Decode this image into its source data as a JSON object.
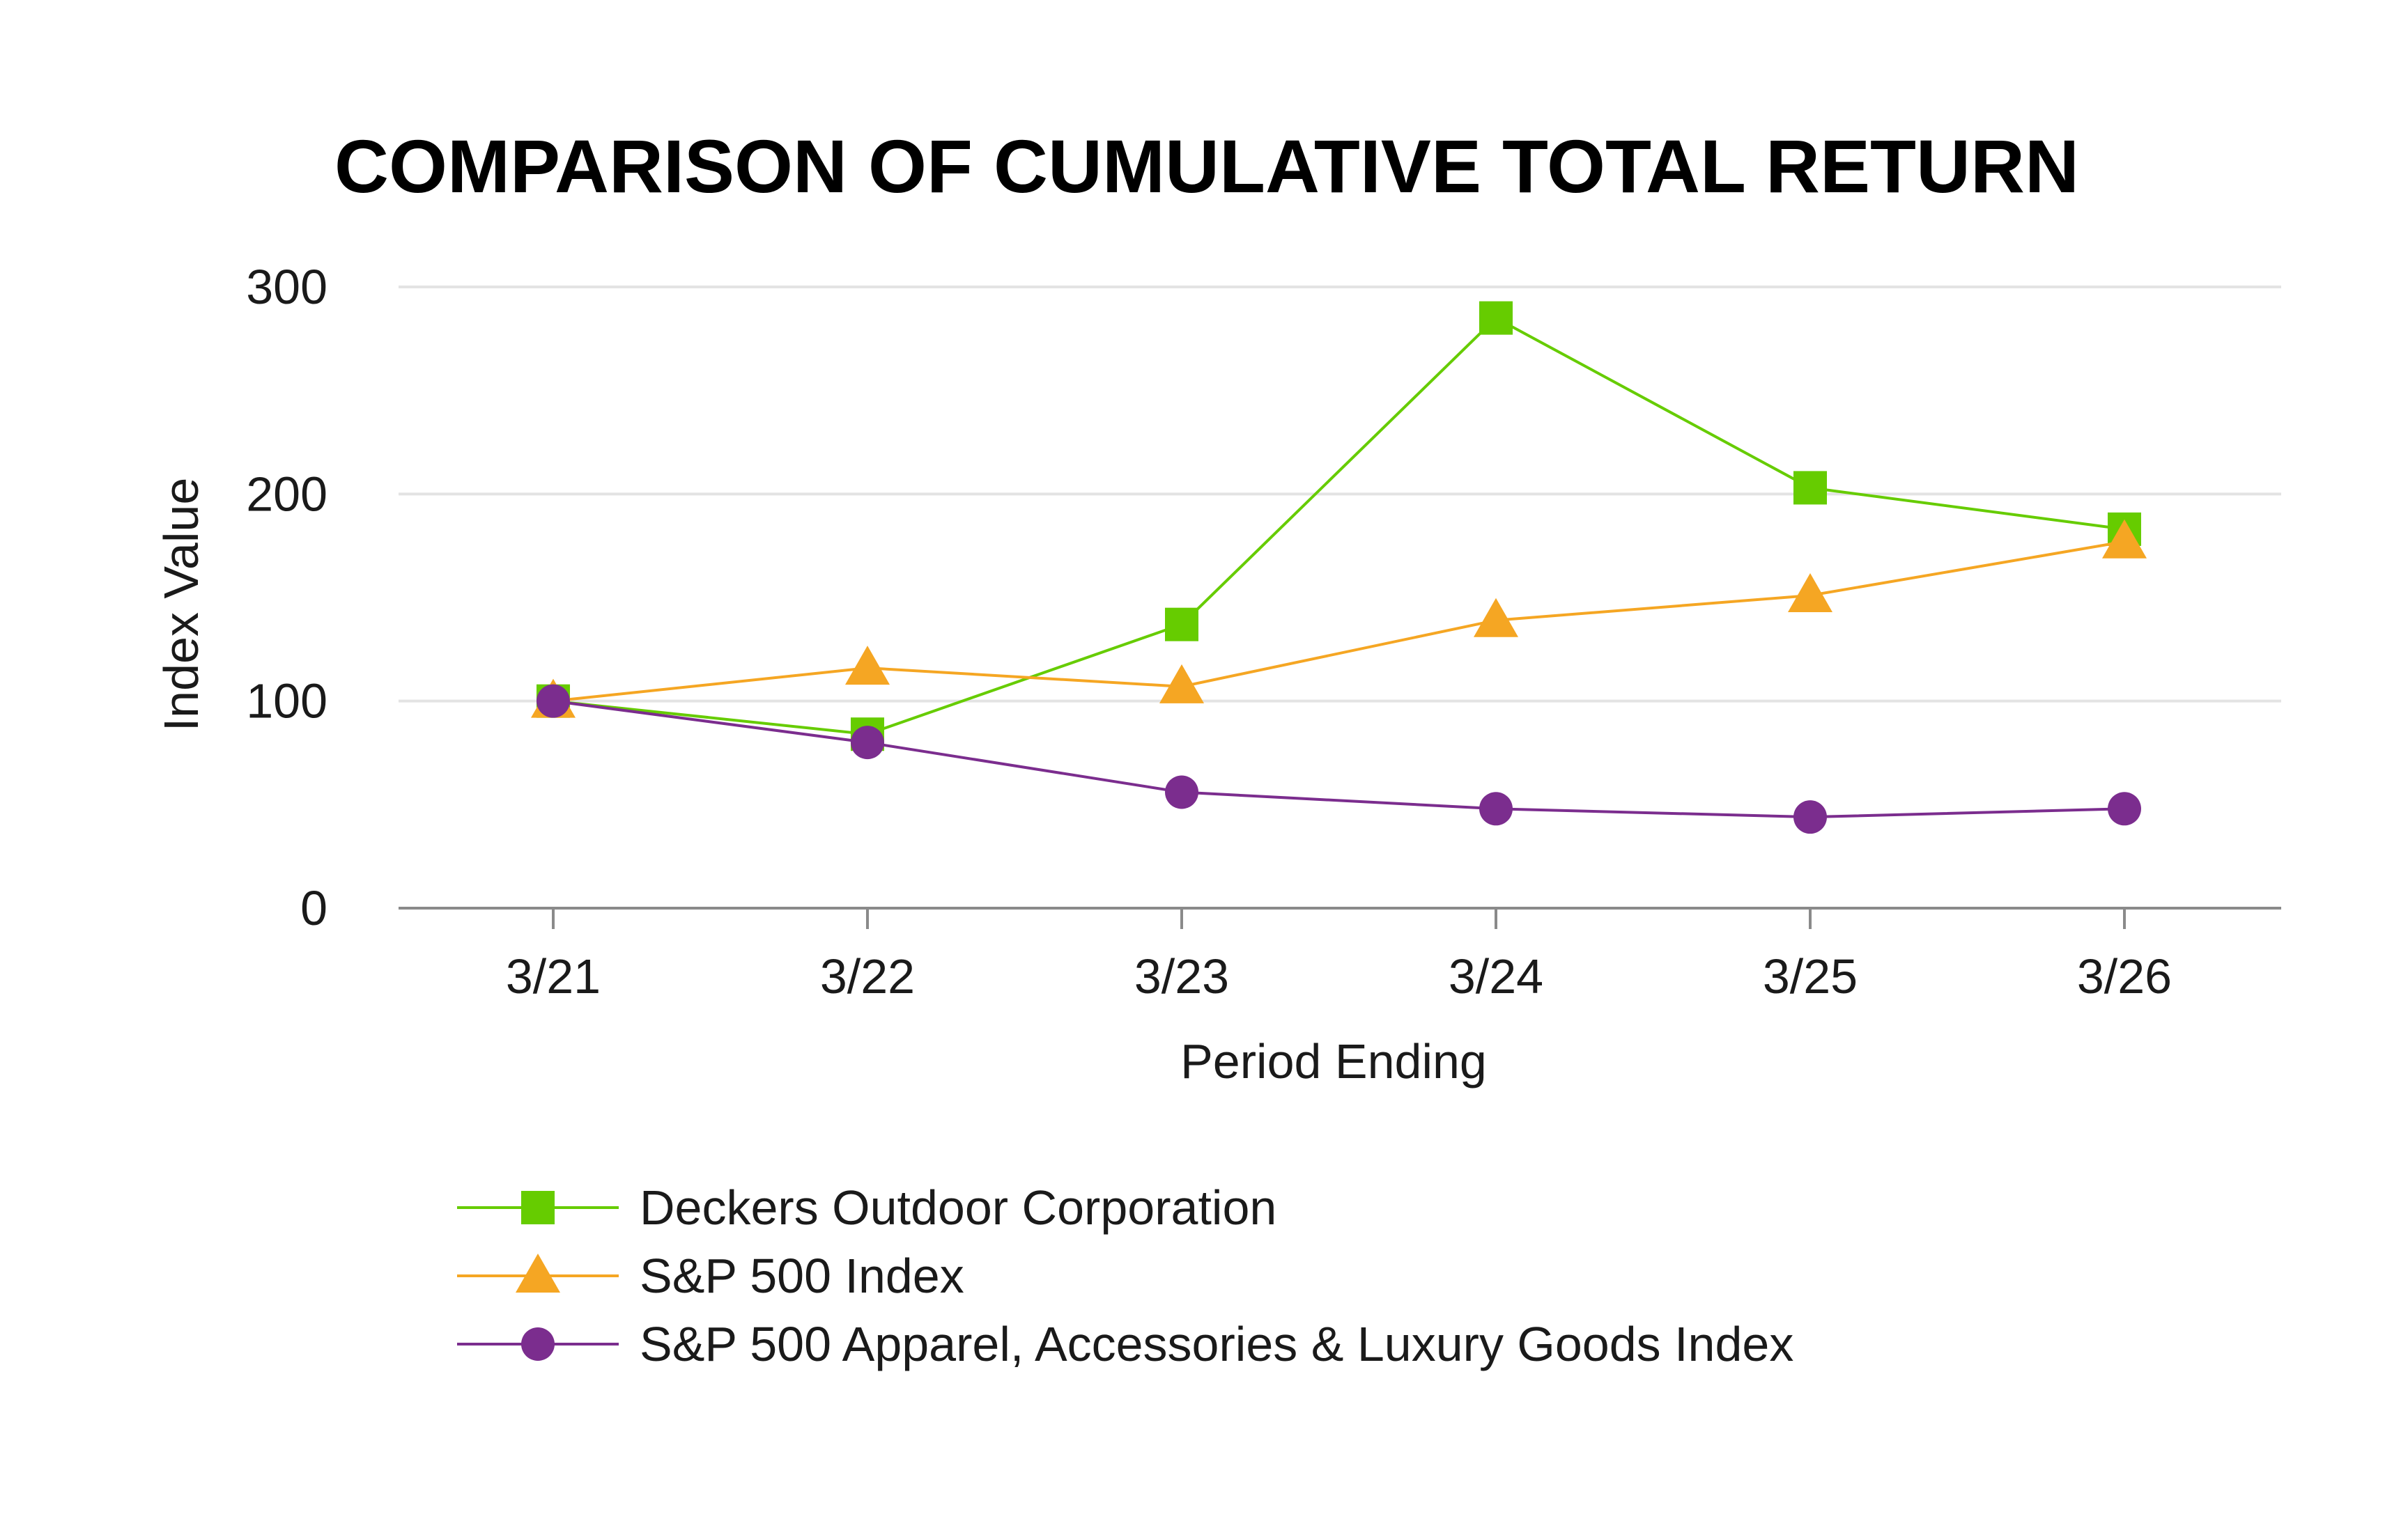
{
  "chart_data": {
    "type": "line",
    "title": "COMPARISON OF CUMULATIVE TOTAL RETURN",
    "xlabel": "Period Ending",
    "ylabel": "Index Value",
    "categories": [
      "3/21",
      "3/22",
      "3/23",
      "3/24",
      "3/25",
      "3/26"
    ],
    "ylim": [
      0,
      300
    ],
    "yticks": [
      0,
      100,
      200,
      300
    ],
    "grid": true,
    "legend_position": "bottom",
    "series": [
      {
        "name": "Deckers Outdoor Corporation",
        "values": [
          100,
          84,
          137,
          285,
          203,
          183
        ],
        "color": "#66cc00",
        "marker": "square"
      },
      {
        "name": "S&P 500 Index",
        "values": [
          100,
          116,
          107,
          139,
          151,
          177
        ],
        "color": "#f5a623",
        "marker": "triangle"
      },
      {
        "name": "S&P 500 Apparel, Accessories & Luxury Goods Index",
        "values": [
          100,
          80,
          56,
          48,
          44,
          48
        ],
        "color": "#7b2d8e",
        "marker": "circle"
      }
    ]
  }
}
